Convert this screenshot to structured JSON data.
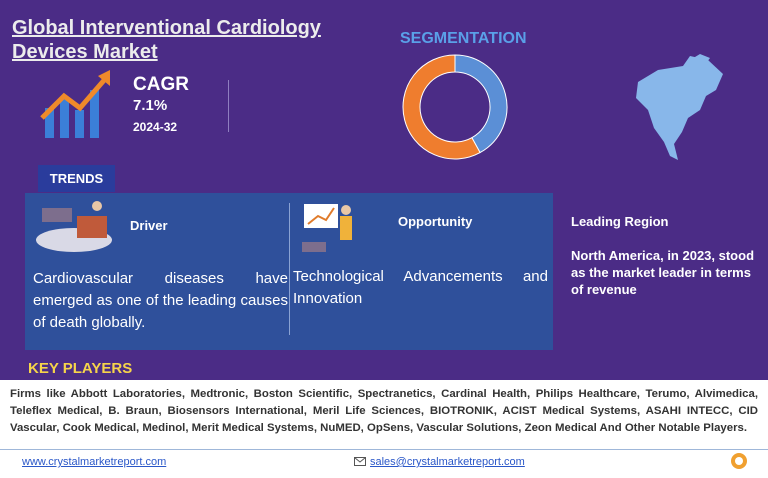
{
  "header": {
    "title": "Global Interventional Cardiology Devices Market"
  },
  "cagr": {
    "label": "CAGR",
    "value": "7.1%",
    "period": "2024-32"
  },
  "segmentation": {
    "title": "SEGMENTATION",
    "values": [
      42,
      58
    ],
    "colors": [
      "#5b8fd6",
      "#ef7d2e"
    ]
  },
  "trends": {
    "label": "TRENDS",
    "driver": {
      "title": "Driver",
      "text": "Cardiovascular diseases have emerged as one of the leading causes of death globally."
    },
    "opportunity": {
      "title": "Opportunity",
      "text": "Technological Advancements and Innovation"
    }
  },
  "leading_region": {
    "title": "Leading Region",
    "text": "North America, in 2023, stood as the market leader in terms of revenue"
  },
  "key_players": {
    "title": "KEY PLAYERS",
    "text": "Firms like Abbott Laboratories, Medtronic, Boston Scientific, Spectranetics, Cardinal Health, Philips Healthcare, Terumo, Alvimedica, Teleflex Medical, B. Braun, Biosensors International, Meril Life Sciences, BIOTRONIK, ACIST Medical Systems, ASAHI INTECC, CID Vascular, Cook Medical, Medinol, Merit Medical Systems, NuMED, OpSens, Vascular Solutions, Zeon Medical And Other Notable Players."
  },
  "footer": {
    "website": "www.crystalmarketreport.com",
    "email": "sales@crystalmarketreport.com"
  }
}
